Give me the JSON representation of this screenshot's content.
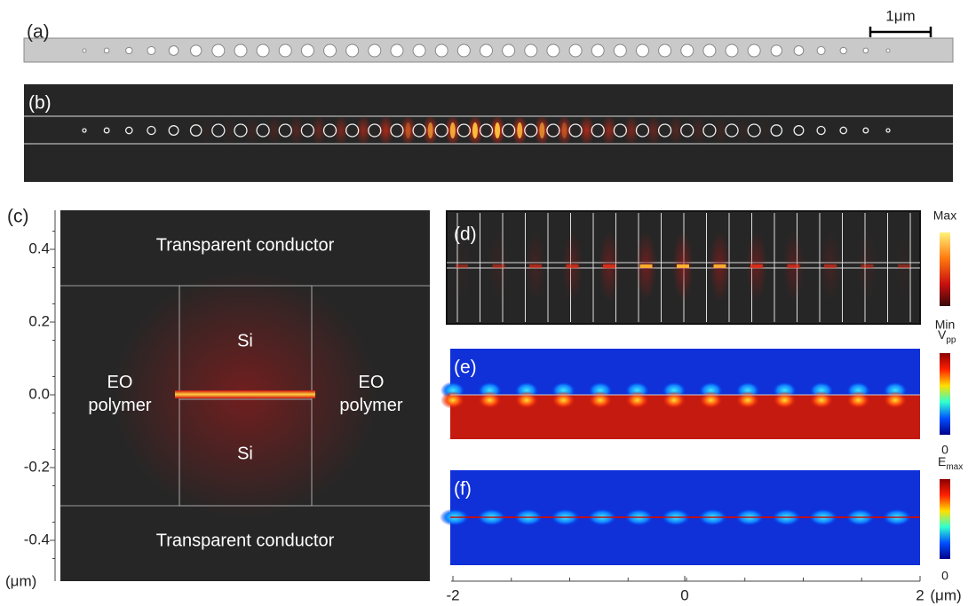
{
  "panel_a": {
    "label": "(a)",
    "scale_bar": "1μm"
  },
  "panel_b": {
    "label": "(b)"
  },
  "panel_c": {
    "label": "(c)",
    "yticks": [
      "0.4",
      "0.2",
      "0.0",
      "-0.2",
      "-0.4"
    ],
    "unit": "(μm)",
    "top": "Transparent conductor",
    "bottom": "Transparent conductor",
    "left": [
      "EO",
      "polymer"
    ],
    "right": [
      "EO",
      "polymer"
    ],
    "si_top": "Si",
    "si_bottom": "Si"
  },
  "panel_d": {
    "label": "(d)",
    "max": "Max",
    "min": "Min"
  },
  "panel_e": {
    "label": "(e)",
    "top": "V",
    "top_sub": "pp",
    "bottom": "0"
  },
  "panel_f": {
    "label": "(f)",
    "top": "E",
    "top_sub": "max",
    "bottom": "0"
  },
  "xaxis": {
    "ticks": [
      "-2",
      "0",
      "2"
    ],
    "unit": "(μm)"
  }
}
